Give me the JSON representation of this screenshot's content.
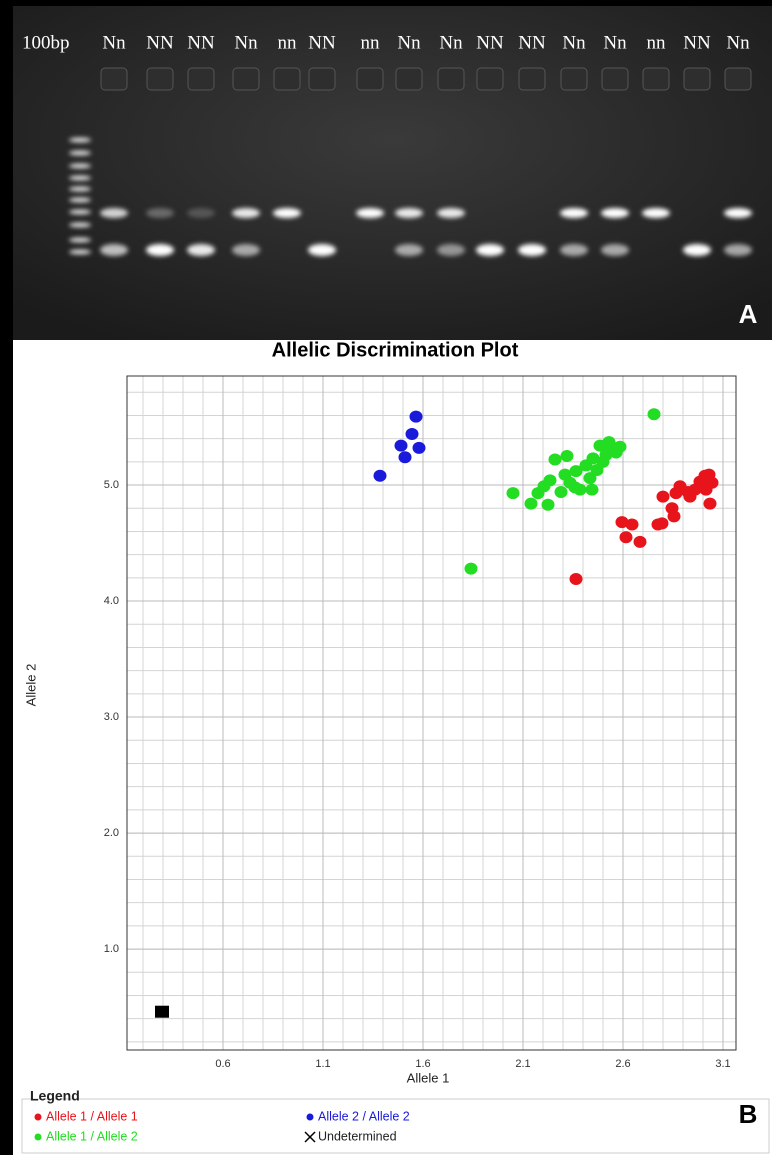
{
  "gel": {
    "ladder_label": "100bp",
    "lane_labels": [
      "Nn",
      "NN",
      "NN",
      "Nn",
      "nn",
      "NN",
      "nn",
      "Nn",
      "Nn",
      "NN",
      "NN",
      "Nn",
      "Nn",
      "nn",
      "NN",
      "Nn"
    ],
    "panel_label": "A"
  },
  "chart_data": {
    "type": "scatter",
    "title": "Allelic Discrimination Plot",
    "x_label": "Allele 1",
    "y_label": "Allele 2",
    "panel_label": "B",
    "xlim": [
      0.12,
      3.165
    ],
    "ylim": [
      0.13,
      5.94
    ],
    "xticks": [
      0.6,
      1.1,
      1.6,
      2.1,
      2.6,
      3.1
    ],
    "yticks": [
      {
        "value": 1,
        "label": "1.0"
      },
      {
        "value": 2,
        "label": "2.0"
      },
      {
        "value": 3,
        "label": "3.0"
      },
      {
        "value": 4,
        "label": "4.0"
      },
      {
        "value": 5,
        "label": "5.0"
      }
    ],
    "grid": true,
    "legend_title": "Legend",
    "series": [
      {
        "name": "Allele 1 / Allele 1",
        "color": "#e8141b",
        "marker": "circle",
        "x": [
          2.365,
          2.595,
          2.645,
          2.615,
          2.685,
          2.775,
          2.795,
          2.8,
          2.845,
          2.855,
          2.865,
          2.925,
          2.96,
          2.985,
          3.01,
          3.03,
          3.045,
          3.015,
          3.035,
          2.885,
          2.935
        ],
        "values": [
          4.19,
          4.68,
          4.66,
          4.55,
          4.51,
          4.66,
          4.67,
          4.9,
          4.8,
          4.73,
          4.93,
          4.94,
          4.96,
          5.03,
          5.08,
          5.09,
          5.02,
          4.96,
          4.84,
          4.99,
          4.9
        ]
      },
      {
        "name": "Allele 2 / Allele 2",
        "color": "#1a1adb",
        "marker": "circle",
        "x": [
          1.385,
          1.51,
          1.49,
          1.565,
          1.545,
          1.58
        ],
        "values": [
          5.08,
          5.24,
          5.34,
          5.59,
          5.44,
          5.32
        ]
      },
      {
        "name": "Allele 1 / Allele 2",
        "color": "#22dd22",
        "marker": "circle",
        "x": [
          1.84,
          2.755,
          2.05,
          2.14,
          2.175,
          2.225,
          2.235,
          2.26,
          2.29,
          2.32,
          2.335,
          2.365,
          2.385,
          2.415,
          2.435,
          2.45,
          2.47,
          2.485,
          2.5,
          2.515,
          2.53,
          2.545,
          2.565,
          2.585,
          2.31,
          2.36,
          2.445,
          2.205
        ],
        "values": [
          4.28,
          5.61,
          4.93,
          4.84,
          4.93,
          4.83,
          5.04,
          5.22,
          4.94,
          5.25,
          5.02,
          5.12,
          4.96,
          5.17,
          5.06,
          5.23,
          5.13,
          5.34,
          5.2,
          5.26,
          5.37,
          5.32,
          5.28,
          5.33,
          5.09,
          4.98,
          4.96,
          4.99
        ]
      },
      {
        "name": "Undetermined",
        "color": "#000000",
        "marker": "square",
        "x": [
          0.295
        ],
        "values": [
          0.46
        ]
      }
    ]
  }
}
